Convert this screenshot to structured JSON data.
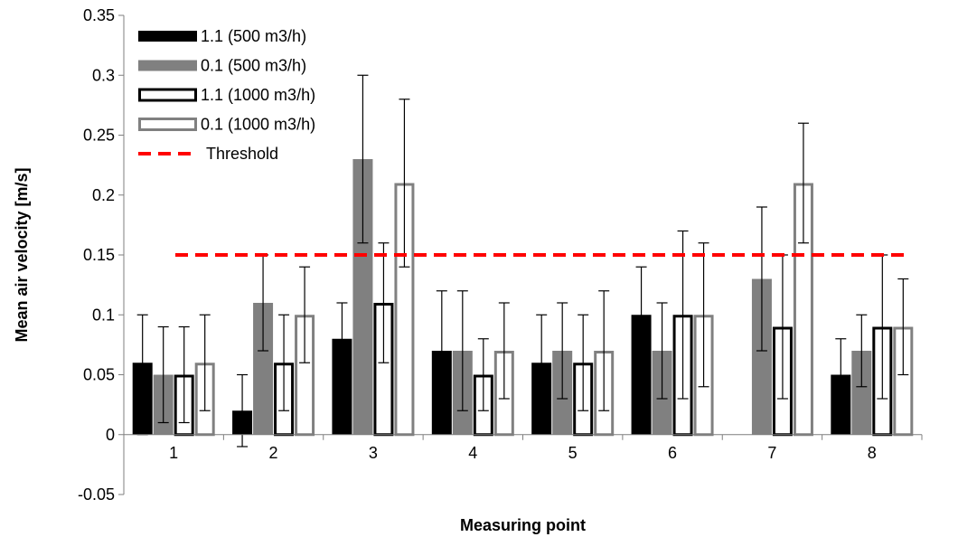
{
  "chart_data": {
    "type": "bar",
    "xlabel": "Measuring point",
    "ylabel": "Mean air velocity [m/s]",
    "ylim": [
      -0.05,
      0.35
    ],
    "yticks": [
      -0.05,
      0,
      0.05,
      0.1,
      0.15,
      0.2,
      0.25,
      0.3,
      0.35
    ],
    "ytick_labels": [
      "-0.05",
      "0",
      "0.05",
      "0.1",
      "0.15",
      "0.2",
      "0.25",
      "0.3",
      "0.35"
    ],
    "categories": [
      "1",
      "2",
      "3",
      "4",
      "5",
      "6",
      "7",
      "8"
    ],
    "grid": false,
    "legend_position": "top-left",
    "series": [
      {
        "name": "1.1 (500 m3/h)",
        "style": "filled",
        "color": "#000000",
        "values": [
          0.06,
          0.02,
          0.08,
          0.07,
          0.06,
          0.1,
          0.0,
          0.05
        ],
        "error_low": [
          0.0,
          -0.01,
          0.05,
          0.02,
          0.02,
          0.06,
          0.0,
          0.02
        ],
        "error_high": [
          0.1,
          0.05,
          0.11,
          0.12,
          0.1,
          0.14,
          0.0,
          0.08
        ]
      },
      {
        "name": "0.1 (500 m3/h)",
        "style": "filled",
        "color": "#808080",
        "values": [
          0.05,
          0.11,
          0.23,
          0.07,
          0.07,
          0.07,
          0.13,
          0.07
        ],
        "error_low": [
          0.01,
          0.07,
          0.16,
          0.02,
          0.03,
          0.03,
          0.07,
          0.04
        ],
        "error_high": [
          0.09,
          0.15,
          0.3,
          0.12,
          0.11,
          0.11,
          0.19,
          0.1
        ]
      },
      {
        "name": "1.1 (1000 m3/h)",
        "style": "outline",
        "color": "#000000",
        "values": [
          0.05,
          0.06,
          0.11,
          0.05,
          0.06,
          0.1,
          0.09,
          0.09
        ],
        "error_low": [
          0.01,
          0.02,
          0.06,
          0.02,
          0.02,
          0.03,
          0.03,
          0.03
        ],
        "error_high": [
          0.09,
          0.1,
          0.16,
          0.08,
          0.1,
          0.17,
          0.15,
          0.15
        ]
      },
      {
        "name": "0.1 (1000 m3/h)",
        "style": "outline",
        "color": "#808080",
        "values": [
          0.06,
          0.1,
          0.21,
          0.07,
          0.07,
          0.1,
          0.21,
          0.09
        ],
        "error_low": [
          0.02,
          0.06,
          0.14,
          0.03,
          0.02,
          0.04,
          0.16,
          0.05
        ],
        "error_high": [
          0.1,
          0.14,
          0.28,
          0.11,
          0.12,
          0.16,
          0.26,
          0.13
        ]
      }
    ],
    "threshold": {
      "name": "Threshold",
      "value": 0.15,
      "color": "#ff0000",
      "style": "dashed"
    }
  }
}
